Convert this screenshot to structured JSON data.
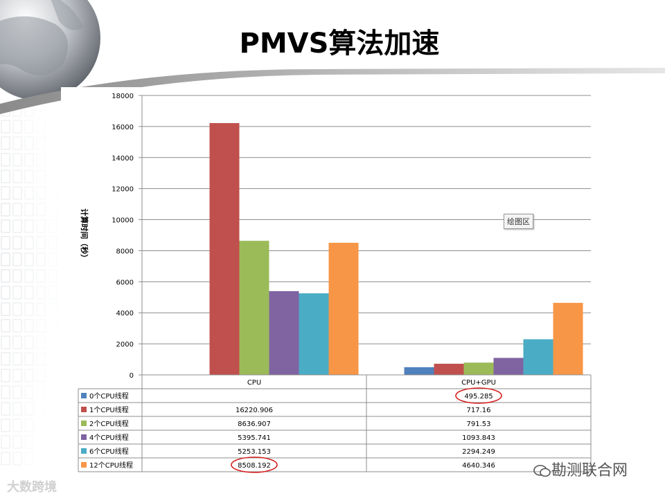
{
  "slide": {
    "title": "PMVS算法加速",
    "tooltip": "绘图区",
    "watermark_left": "大数跨境",
    "watermark_right": "勘测联合网"
  },
  "chart_data": {
    "type": "bar",
    "title": "",
    "ylabel": "计算时间（秒）",
    "xlabel": "",
    "ylim": [
      0,
      18000
    ],
    "yticks": [
      0,
      2000,
      4000,
      6000,
      8000,
      10000,
      12000,
      14000,
      16000,
      18000
    ],
    "categories": [
      "CPU",
      "CPU+GPU"
    ],
    "grid": true,
    "legend": "data-table",
    "series": [
      {
        "name": "0个CPU线程",
        "color": "#4f81bd",
        "values": [
          null,
          495.285
        ],
        "labels": [
          "",
          "495.285"
        ]
      },
      {
        "name": "1个CPU线程",
        "color": "#c0504d",
        "values": [
          16220.906,
          717.16
        ],
        "labels": [
          "16220.906",
          "717.16"
        ]
      },
      {
        "name": "2个CPU线程",
        "color": "#9bbb59",
        "values": [
          8636.907,
          791.53
        ],
        "labels": [
          "8636.907",
          "791.53"
        ]
      },
      {
        "name": "4个CPU线程",
        "color": "#8064a2",
        "values": [
          5395.741,
          1093.843
        ],
        "labels": [
          "5395.741",
          "1093.843"
        ]
      },
      {
        "name": "6个CPU线程",
        "color": "#4bacc6",
        "values": [
          5253.153,
          2294.249
        ],
        "labels": [
          "5253.153",
          "2294.249"
        ]
      },
      {
        "name": "12个CPU线程",
        "color": "#f79646",
        "values": [
          8508.192,
          4640.346
        ],
        "labels": [
          "8508.192",
          "4640.346"
        ]
      }
    ],
    "highlighted": [
      "495.285",
      "8508.192"
    ],
    "highlight_color": "#d62020"
  }
}
